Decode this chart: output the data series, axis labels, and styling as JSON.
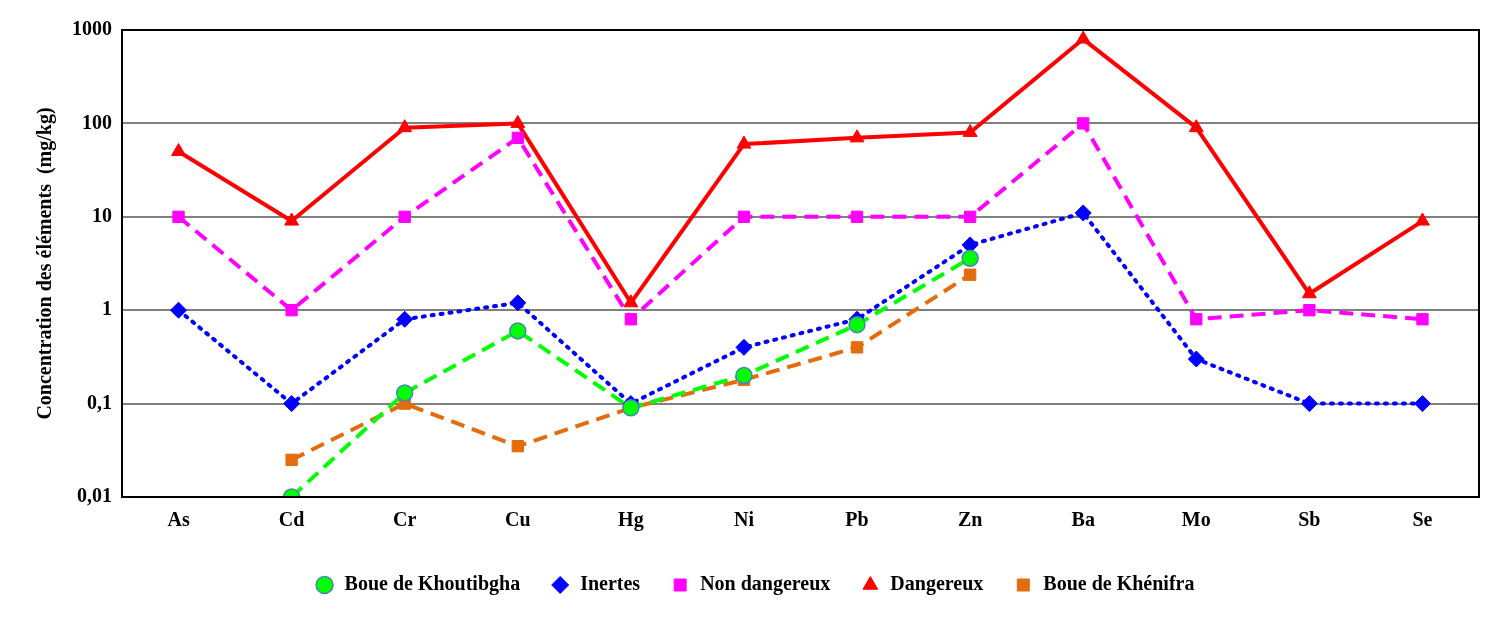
{
  "chart_data": {
    "type": "line",
    "ylabel": "Concentration des éléments  (mg/kg)",
    "categories": [
      "As",
      "Cd",
      "Cr",
      "Cu",
      "Hg",
      "Ni",
      "Pb",
      "Zn",
      "Ba",
      "Mo",
      "Sb",
      "Se"
    ],
    "log": "y",
    "ylim": [
      0.01,
      1000
    ],
    "yticks": [
      {
        "value": 0.01,
        "label": "0,01"
      },
      {
        "value": 0.1,
        "label": "0,1"
      },
      1,
      10,
      100,
      1000
    ],
    "grid": "y",
    "legend": "bottom",
    "series": [
      {
        "name": "Boue de Khoutibgha",
        "color": "#00ff00",
        "marker": "circle",
        "line_style": "dashed",
        "values": [
          null,
          0.01,
          0.13,
          0.6,
          0.09,
          0.2,
          0.7,
          3.6,
          null,
          null,
          null,
          null
        ]
      },
      {
        "name": "Inertes",
        "color": "#0000ff",
        "marker": "diamond",
        "line_style": "dotted",
        "values": [
          1,
          0.1,
          0.8,
          1.2,
          0.1,
          0.4,
          0.8,
          5,
          11,
          0.3,
          0.1,
          0.1
        ]
      },
      {
        "name": "Non dangereux",
        "color": "#ff00ff",
        "marker": "square",
        "line_style": "dashed",
        "values": [
          10,
          1,
          10,
          70,
          0.8,
          10,
          10,
          10,
          100,
          0.8,
          1,
          0.8
        ]
      },
      {
        "name": "Dangereux",
        "color": "#ff0000",
        "marker": "triangle",
        "line_style": "solid",
        "values": [
          50,
          9,
          90,
          100,
          1.2,
          60,
          70,
          80,
          800,
          90,
          1.5,
          9
        ]
      },
      {
        "name": "Boue de Khénifra",
        "color": "#e46c0a",
        "marker": "square",
        "line_style": "dashed",
        "values": [
          null,
          0.025,
          0.1,
          0.035,
          0.09,
          0.18,
          0.4,
          2.4,
          null,
          null,
          null,
          null
        ]
      }
    ]
  }
}
